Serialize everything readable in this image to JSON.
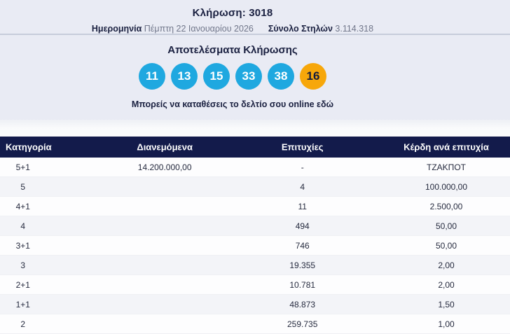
{
  "draw": {
    "title": "Κλήρωση: 3018",
    "date_label": "Ημερομηνία",
    "date_value": "Πέμπτη 22 Ιανουαρίου 2026",
    "columns_label": "Σύνολο Στηλών",
    "columns_value": "3.114.318"
  },
  "results": {
    "heading": "Αποτελέσματα Κλήρωσης",
    "numbers": [
      "11",
      "13",
      "15",
      "33",
      "38"
    ],
    "bonus_number": "16",
    "link_text": "Μπορείς να καταθέσεις το δελτίο σου online εδώ"
  },
  "table": {
    "headers": {
      "category": "Κατηγορία",
      "distributed": "Διανεμόμενα",
      "winners": "Επιτυχίες",
      "prize": "Κέρδη ανά επιτυχία"
    },
    "rows": [
      {
        "category": "5+1",
        "distributed": "14.200.000,00",
        "winners": "-",
        "prize": "ΤΖΑΚΠΟΤ"
      },
      {
        "category": "5",
        "distributed": "",
        "winners": "4",
        "prize": "100.000,00"
      },
      {
        "category": "4+1",
        "distributed": "",
        "winners": "11",
        "prize": "2.500,00"
      },
      {
        "category": "4",
        "distributed": "",
        "winners": "494",
        "prize": "50,00"
      },
      {
        "category": "3+1",
        "distributed": "",
        "winners": "746",
        "prize": "50,00"
      },
      {
        "category": "3",
        "distributed": "",
        "winners": "19.355",
        "prize": "2,00"
      },
      {
        "category": "2+1",
        "distributed": "",
        "winners": "10.781",
        "prize": "2,00"
      },
      {
        "category": "1+1",
        "distributed": "",
        "winners": "48.873",
        "prize": "1,50"
      },
      {
        "category": "2",
        "distributed": "",
        "winners": "259.735",
        "prize": "1,00"
      }
    ]
  },
  "colors": {
    "ball_blue": "#1fa8e0",
    "ball_orange": "#f7a70a",
    "header_navy": "#131b4b",
    "section_bg": "#e9ebf4"
  }
}
